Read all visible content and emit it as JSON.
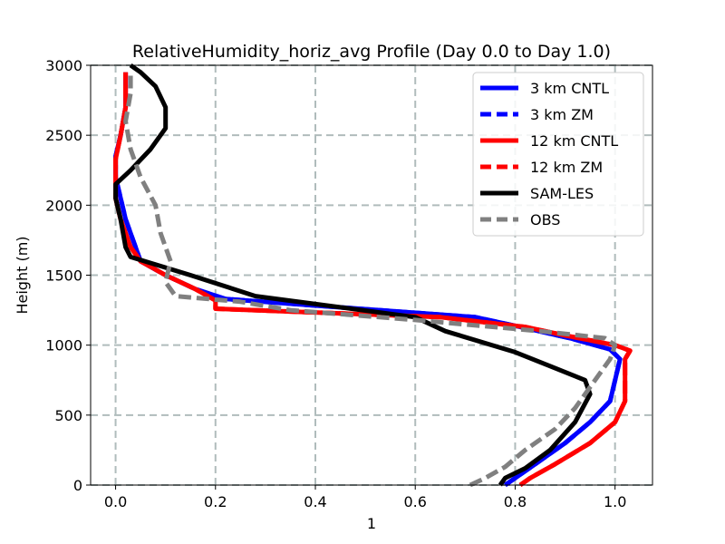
{
  "chart_data": {
    "type": "line",
    "title": "RelativeHumidity_horiz_avg Profile (Day 0.0 to Day 1.0)",
    "xlabel": "1",
    "ylabel": "Height (m)",
    "xlim": [
      -0.05,
      1.075
    ],
    "ylim": [
      0,
      3000
    ],
    "xticks": [
      "0.0",
      "0.2",
      "0.4",
      "0.6",
      "0.8",
      "1.0"
    ],
    "yticks": [
      "0",
      "500",
      "1000",
      "1500",
      "2000",
      "2500",
      "3000"
    ],
    "grid": true,
    "legend_position": "top-right",
    "series": [
      {
        "name": "3 km CNTL",
        "color": "#0000ff",
        "dash": "solid",
        "points": [
          [
            0.78,
            0
          ],
          [
            0.8,
            50
          ],
          [
            0.84,
            150
          ],
          [
            0.9,
            300
          ],
          [
            0.95,
            450
          ],
          [
            0.99,
            600
          ],
          [
            1.0,
            750
          ],
          [
            1.01,
            900
          ],
          [
            0.99,
            970
          ],
          [
            0.91,
            1050
          ],
          [
            0.81,
            1130
          ],
          [
            0.72,
            1200
          ],
          [
            0.45,
            1270
          ],
          [
            0.22,
            1330
          ],
          [
            0.16,
            1400
          ],
          [
            0.1,
            1500
          ],
          [
            0.05,
            1600
          ],
          [
            0.04,
            1700
          ],
          [
            0.02,
            1900
          ],
          [
            0.01,
            2050
          ],
          [
            0.0,
            2200
          ],
          [
            0.0,
            2350
          ],
          [
            0.01,
            2500
          ],
          [
            0.02,
            2700
          ],
          [
            0.02,
            2950
          ]
        ]
      },
      {
        "name": "3 km ZM",
        "color": "#0000ff",
        "dash": "dashed",
        "points": [
          [
            0.78,
            0
          ],
          [
            0.8,
            50
          ],
          [
            0.84,
            150
          ],
          [
            0.9,
            300
          ],
          [
            0.95,
            450
          ],
          [
            0.99,
            600
          ],
          [
            1.0,
            750
          ],
          [
            1.01,
            900
          ],
          [
            0.99,
            970
          ],
          [
            0.91,
            1050
          ],
          [
            0.81,
            1130
          ],
          [
            0.72,
            1200
          ],
          [
            0.45,
            1270
          ],
          [
            0.22,
            1330
          ],
          [
            0.16,
            1400
          ],
          [
            0.1,
            1500
          ],
          [
            0.05,
            1600
          ],
          [
            0.04,
            1700
          ],
          [
            0.02,
            1900
          ],
          [
            0.01,
            2050
          ],
          [
            0.0,
            2200
          ],
          [
            0.0,
            2350
          ],
          [
            0.01,
            2500
          ],
          [
            0.02,
            2700
          ],
          [
            0.02,
            2950
          ]
        ]
      },
      {
        "name": "12 km CNTL",
        "color": "#ff0000",
        "dash": "solid",
        "points": [
          [
            0.81,
            0
          ],
          [
            0.83,
            50
          ],
          [
            0.88,
            150
          ],
          [
            0.95,
            300
          ],
          [
            1.0,
            450
          ],
          [
            1.02,
            600
          ],
          [
            1.02,
            750
          ],
          [
            1.02,
            900
          ],
          [
            1.03,
            960
          ],
          [
            1.0,
            1000
          ],
          [
            0.9,
            1070
          ],
          [
            0.82,
            1130
          ],
          [
            0.65,
            1200
          ],
          [
            0.35,
            1240
          ],
          [
            0.2,
            1260
          ],
          [
            0.2,
            1320
          ],
          [
            0.16,
            1400
          ],
          [
            0.1,
            1500
          ],
          [
            0.05,
            1600
          ],
          [
            0.03,
            1700
          ],
          [
            0.01,
            1900
          ],
          [
            0.0,
            2050
          ],
          [
            0.0,
            2200
          ],
          [
            0.0,
            2330
          ],
          [
            0.01,
            2500
          ],
          [
            0.02,
            2700
          ],
          [
            0.02,
            2950
          ]
        ]
      },
      {
        "name": "12 km ZM",
        "color": "#ff0000",
        "dash": "dashed",
        "points": [
          [
            0.81,
            0
          ],
          [
            0.83,
            50
          ],
          [
            0.88,
            150
          ],
          [
            0.95,
            300
          ],
          [
            1.0,
            450
          ],
          [
            1.02,
            600
          ],
          [
            1.02,
            750
          ],
          [
            1.02,
            900
          ],
          [
            1.03,
            960
          ],
          [
            1.0,
            1000
          ],
          [
            0.9,
            1070
          ],
          [
            0.82,
            1130
          ],
          [
            0.65,
            1200
          ],
          [
            0.35,
            1240
          ],
          [
            0.2,
            1260
          ],
          [
            0.2,
            1320
          ],
          [
            0.16,
            1400
          ],
          [
            0.1,
            1500
          ],
          [
            0.05,
            1600
          ],
          [
            0.03,
            1700
          ],
          [
            0.01,
            1900
          ],
          [
            0.0,
            2050
          ],
          [
            0.0,
            2200
          ],
          [
            0.0,
            2330
          ],
          [
            0.01,
            2500
          ],
          [
            0.02,
            2700
          ],
          [
            0.02,
            2950
          ]
        ]
      },
      {
        "name": "SAM-LES",
        "color": "#000000",
        "dash": "solid",
        "points": [
          [
            0.77,
            0
          ],
          [
            0.78,
            50
          ],
          [
            0.82,
            120
          ],
          [
            0.87,
            250
          ],
          [
            0.92,
            450
          ],
          [
            0.95,
            650
          ],
          [
            0.94,
            750
          ],
          [
            0.87,
            850
          ],
          [
            0.8,
            950
          ],
          [
            0.66,
            1100
          ],
          [
            0.6,
            1200
          ],
          [
            0.28,
            1350
          ],
          [
            0.15,
            1500
          ],
          [
            0.03,
            1630
          ],
          [
            0.02,
            1700
          ],
          [
            0.01,
            1900
          ],
          [
            0.0,
            2050
          ],
          [
            0.0,
            2150
          ],
          [
            0.03,
            2250
          ],
          [
            0.07,
            2400
          ],
          [
            0.1,
            2550
          ],
          [
            0.1,
            2700
          ],
          [
            0.08,
            2850
          ],
          [
            0.05,
            2950
          ],
          [
            0.03,
            3000
          ]
        ]
      },
      {
        "name": "OBS",
        "color": "#808080",
        "dash": "dashed",
        "points": [
          [
            0.71,
            0
          ],
          [
            0.74,
            50
          ],
          [
            0.78,
            130
          ],
          [
            0.82,
            250
          ],
          [
            0.88,
            400
          ],
          [
            0.92,
            550
          ],
          [
            0.95,
            700
          ],
          [
            0.99,
            900
          ],
          [
            1.0,
            1000
          ],
          [
            0.98,
            1050
          ],
          [
            0.85,
            1100
          ],
          [
            0.6,
            1180
          ],
          [
            0.35,
            1250
          ],
          [
            0.25,
            1310
          ],
          [
            0.12,
            1350
          ],
          [
            0.1,
            1450
          ],
          [
            0.11,
            1600
          ],
          [
            0.09,
            1800
          ],
          [
            0.08,
            2000
          ],
          [
            0.05,
            2200
          ],
          [
            0.03,
            2400
          ],
          [
            0.02,
            2600
          ],
          [
            0.03,
            2800
          ],
          [
            0.03,
            2950
          ]
        ]
      }
    ]
  }
}
